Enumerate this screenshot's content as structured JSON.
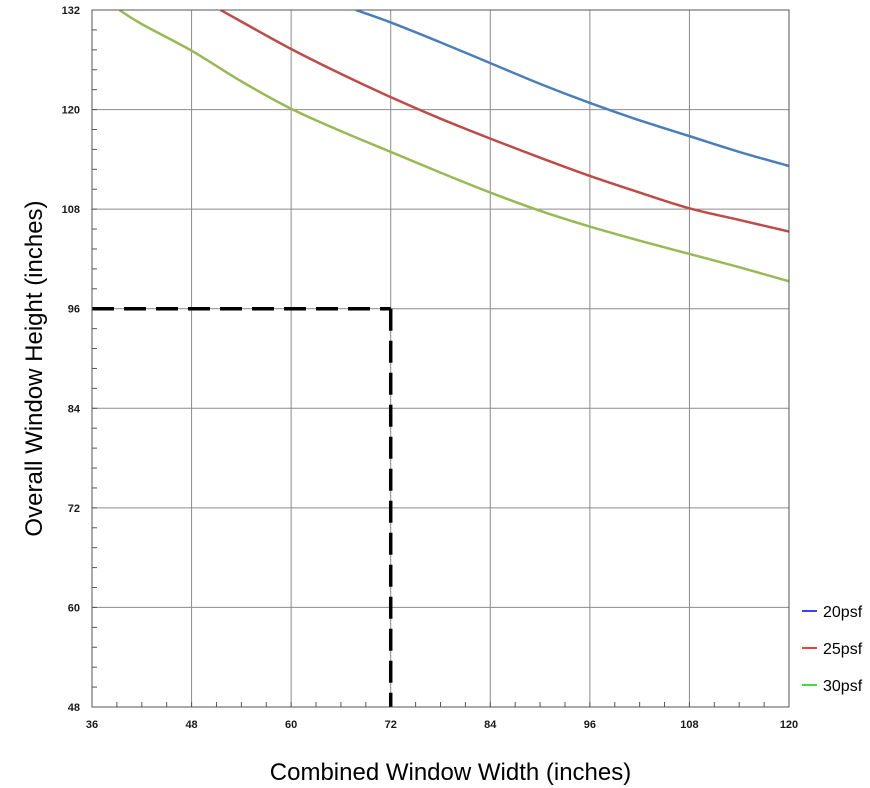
{
  "chart_data": {
    "type": "line",
    "xlabel": "Combined Window Width (inches)",
    "ylabel": "Overall Window Height (inches)",
    "xlim": [
      36,
      120
    ],
    "ylim": [
      48,
      132
    ],
    "x_ticks": [
      36,
      48,
      60,
      72,
      84,
      96,
      108,
      120
    ],
    "y_ticks": [
      48,
      60,
      72,
      84,
      96,
      108,
      120,
      132
    ],
    "grid": true,
    "legend_position": "bottom-right outside plot",
    "series": [
      {
        "name": "20psf",
        "color": "#4a7ebb",
        "x": [
          67.8,
          72,
          78,
          84,
          90,
          96,
          102,
          108,
          114,
          120
        ],
        "y": [
          132,
          130.5,
          128.1,
          125.6,
          123.1,
          120.8,
          118.7,
          116.8,
          114.9,
          113.2
        ]
      },
      {
        "name": "25psf",
        "color": "#be4b48",
        "x": [
          51.5,
          54,
          60,
          66,
          72,
          78,
          84,
          90,
          96,
          102,
          108,
          114,
          120
        ],
        "y": [
          132,
          130.6,
          127.3,
          124.3,
          121.5,
          118.9,
          116.5,
          114.2,
          112.0,
          110.0,
          108.1,
          106.7,
          105.3
        ]
      },
      {
        "name": "30psf",
        "color": "#98b954",
        "x": [
          39.3,
          42,
          48,
          54,
          60,
          66,
          72,
          78,
          84,
          90,
          96,
          102,
          108,
          114,
          120
        ],
        "y": [
          132,
          130.3,
          127.1,
          123.4,
          120.1,
          117.4,
          114.9,
          112.4,
          110.0,
          107.8,
          105.9,
          104.2,
          102.6,
          101.0,
          99.3
        ]
      }
    ],
    "reference_lines": {
      "x": 72,
      "y": 96,
      "style": "dashed",
      "color": "#000000"
    }
  }
}
